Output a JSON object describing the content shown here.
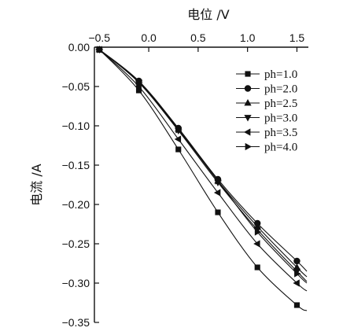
{
  "chart_data": {
    "type": "line",
    "xlabel": "电位 /V",
    "ylabel": "电流 /A",
    "xlim": [
      -0.55,
      1.6
    ],
    "ylim": [
      -0.35,
      0.0
    ],
    "x_ticks": [
      -0.5,
      0.0,
      0.5,
      1.0,
      1.5
    ],
    "x_tick_labels": [
      "−0.5",
      "0.0",
      "0.5",
      "1.0",
      "1.5"
    ],
    "y_ticks": [
      0.0,
      -0.05,
      -0.1,
      -0.15,
      -0.2,
      -0.25,
      -0.3,
      -0.35
    ],
    "y_tick_labels": [
      "0.00",
      "−0.05",
      "−0.10",
      "−0.15",
      "−0.20",
      "−0.25",
      "−0.30",
      "−0.35"
    ],
    "x_axis_position": "top",
    "grid": false,
    "legend_position": "right",
    "series": [
      {
        "name": "ph=1.0",
        "marker": "square",
        "x": [
          -0.5,
          -0.1,
          0.3,
          0.7,
          1.1,
          1.5
        ],
        "y": [
          -0.003,
          -0.055,
          -0.13,
          -0.21,
          -0.28,
          -0.328
        ],
        "line_end": [
          1.6,
          -0.335
        ]
      },
      {
        "name": "ph=2.0",
        "marker": "circle",
        "x": [
          -0.5,
          -0.1,
          0.3,
          0.7,
          1.1,
          1.5
        ],
        "y": [
          -0.003,
          -0.043,
          -0.103,
          -0.168,
          -0.224,
          -0.272
        ],
        "line_end": [
          1.6,
          -0.285
        ]
      },
      {
        "name": "ph=2.5",
        "marker": "triangle-up",
        "x": [
          -0.5,
          -0.1,
          0.3,
          0.7,
          1.1,
          1.5
        ],
        "y": [
          -0.003,
          -0.044,
          -0.104,
          -0.17,
          -0.228,
          -0.28
        ],
        "line_end": [
          1.6,
          -0.292
        ]
      },
      {
        "name": "ph=3.0",
        "marker": "triangle-down",
        "x": [
          -0.5,
          -0.1,
          0.3,
          0.7,
          1.1,
          1.5
        ],
        "y": [
          -0.003,
          -0.045,
          -0.106,
          -0.172,
          -0.232,
          -0.285
        ],
        "line_end": [
          1.6,
          -0.298
        ]
      },
      {
        "name": "ph=3.5",
        "marker": "triangle-left",
        "x": [
          -0.5,
          -0.1,
          0.3,
          0.7,
          1.1,
          1.5
        ],
        "y": [
          -0.003,
          -0.05,
          -0.117,
          -0.185,
          -0.25,
          -0.3
        ],
        "line_end": [
          1.6,
          -0.31
        ]
      },
      {
        "name": "ph=4.0",
        "marker": "triangle-right",
        "x": [
          -0.5,
          -0.1,
          0.3,
          0.7,
          1.1,
          1.5
        ],
        "y": [
          -0.003,
          -0.045,
          -0.105,
          -0.17,
          -0.235,
          -0.288
        ],
        "line_end": [
          1.6,
          -0.3
        ]
      }
    ]
  }
}
